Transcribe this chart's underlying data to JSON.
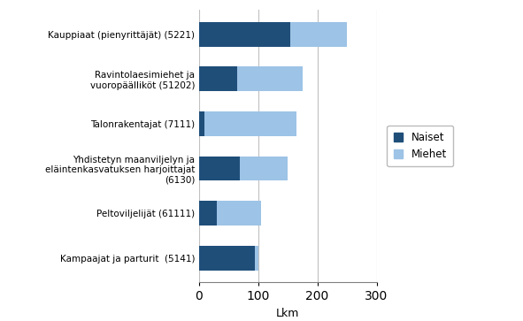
{
  "categories": [
    "Kampaajat ja parturit  (5141)",
    "Peltoviljelijät (61111)",
    "Yhdistetyn maanviljelyn ja\neläintenkasvatuksen harjoittajat\n(6130)",
    "Talonrakentajat (7111)",
    "Ravintolaesimiehet ja\nvuoropäälliköt (51202)",
    "Kauppiaat (pienyrittäjät) (5221)"
  ],
  "naiset": [
    95,
    30,
    70,
    10,
    65,
    155
  ],
  "miehet": [
    5,
    75,
    80,
    155,
    110,
    95
  ],
  "color_naiset": "#1F4E79",
  "color_miehet": "#9DC3E6",
  "xlim": [
    0,
    300
  ],
  "xticks": [
    0,
    100,
    200,
    300
  ],
  "xlabel": "Lkm",
  "legend_naiset": "Naiset",
  "legend_miehet": "Miehet",
  "background_color": "#FFFFFF",
  "grid_color": "#C0C0C0",
  "bar_height": 0.55
}
